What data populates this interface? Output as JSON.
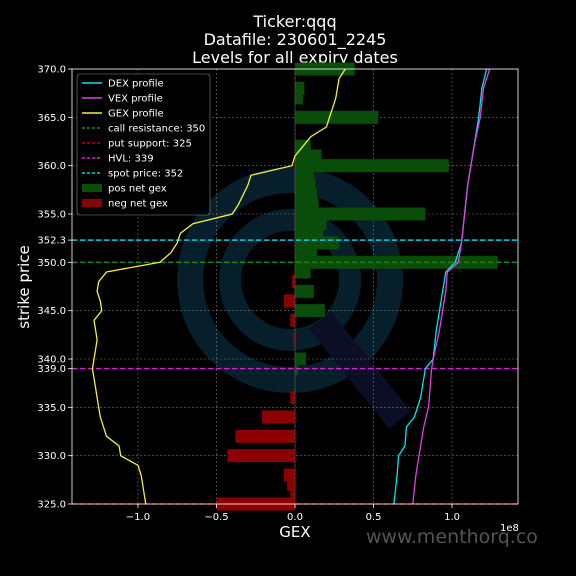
{
  "chart_data": {
    "type": "bar",
    "title_lines": [
      "Ticker:qqq",
      "Datafile: 230601_2245",
      "Levels for all expiry dates"
    ],
    "xlabel": "GEX",
    "ylabel": "strike price",
    "x_multiplier_label": "1e8",
    "xlim": [
      -1.42,
      1.42
    ],
    "ylim": [
      325,
      370
    ],
    "x_ticks": [
      -1.0,
      -0.5,
      0.0,
      0.5,
      1.0
    ],
    "x_tick_labels": [
      "−1.0",
      "−0.5",
      "0.0",
      "0.5",
      "1.0"
    ],
    "y_ticks": [
      325,
      330,
      335,
      339,
      340,
      345,
      350,
      352.3,
      355,
      360,
      365,
      370
    ],
    "y_tick_labels": [
      "325.0",
      "330.0",
      "335.0",
      "339.0",
      "340.0",
      "345.0",
      "350.0",
      "352.3",
      "355.0",
      "360.0",
      "365.0",
      "370.0"
    ],
    "grid": true,
    "legend_position": "top-left",
    "legend": [
      {
        "label": "DEX profile",
        "kind": "line",
        "color": "#00e5ee",
        "dash": false
      },
      {
        "label": "VEX profile",
        "kind": "line",
        "color": "#e040e0",
        "dash": false
      },
      {
        "label": "GEX profile",
        "kind": "line",
        "color": "#f0f040",
        "dash": false
      },
      {
        "label": "call resistance: 350",
        "kind": "line",
        "color": "#1a8a1a",
        "dash": true
      },
      {
        "label": "put support: 325",
        "kind": "line",
        "color": "#c00000",
        "dash": true
      },
      {
        "label": "HVL: 339",
        "kind": "line",
        "color": "#d020d0",
        "dash": true
      },
      {
        "label": "spot price: 352",
        "kind": "line",
        "color": "#00d0e0",
        "dash": true
      },
      {
        "label": "pos net gex",
        "kind": "patch",
        "color": "#0a4d0a"
      },
      {
        "label": "neg net gex",
        "kind": "patch",
        "color": "#8b0000"
      }
    ],
    "levels": [
      {
        "name": "call resistance",
        "y": 350,
        "color": "#1a8a1a"
      },
      {
        "name": "put support",
        "y": 325,
        "color": "#c00000"
      },
      {
        "name": "HVL",
        "y": 339,
        "color": "#d020d0"
      },
      {
        "name": "spot price",
        "y": 352.3,
        "color": "#00d0e0"
      }
    ],
    "pos_bars": [
      {
        "strike": 370,
        "value": 0.38
      },
      {
        "strike": 368,
        "value": 0.06
      },
      {
        "strike": 367,
        "value": 0.05
      },
      {
        "strike": 365,
        "value": 0.53
      },
      {
        "strike": 362,
        "value": 0.1
      },
      {
        "strike": 361,
        "value": 0.17
      },
      {
        "strike": 360,
        "value": 0.98
      },
      {
        "strike": 359,
        "value": 0.12
      },
      {
        "strike": 358,
        "value": 0.13
      },
      {
        "strike": 357,
        "value": 0.14
      },
      {
        "strike": 356,
        "value": 0.15
      },
      {
        "strike": 355,
        "value": 0.83
      },
      {
        "strike": 354,
        "value": 0.2
      },
      {
        "strike": 353,
        "value": 0.18
      },
      {
        "strike": 352,
        "value": 0.28
      },
      {
        "strike": 351,
        "value": 0.14
      },
      {
        "strike": 350,
        "value": 1.29
      },
      {
        "strike": 349,
        "value": 0.1
      },
      {
        "strike": 347,
        "value": 0.12
      },
      {
        "strike": 345,
        "value": 0.19
      },
      {
        "strike": 340,
        "value": 0.07
      },
      {
        "strike": 339,
        "value": 0.02
      }
    ],
    "neg_bars": [
      {
        "strike": 348,
        "value": -0.02
      },
      {
        "strike": 346,
        "value": -0.07
      },
      {
        "strike": 344,
        "value": -0.03
      },
      {
        "strike": 342,
        "value": -0.01
      },
      {
        "strike": 336,
        "value": -0.03
      },
      {
        "strike": 334,
        "value": -0.21
      },
      {
        "strike": 332,
        "value": -0.38
      },
      {
        "strike": 330,
        "value": -0.43
      },
      {
        "strike": 328,
        "value": -0.07
      },
      {
        "strike": 327,
        "value": -0.05
      },
      {
        "strike": 326,
        "value": -0.03
      },
      {
        "strike": 325,
        "value": -0.5
      }
    ],
    "series": [
      {
        "name": "GEX profile",
        "color": "#f0f040",
        "points": [
          [
            -0.95,
            325
          ],
          [
            -0.96,
            326
          ],
          [
            -0.97,
            327
          ],
          [
            -0.98,
            328
          ],
          [
            -1.0,
            329
          ],
          [
            -1.11,
            330
          ],
          [
            -1.12,
            331
          ],
          [
            -1.2,
            332
          ],
          [
            -1.22,
            333
          ],
          [
            -1.24,
            334
          ],
          [
            -1.25,
            335
          ],
          [
            -1.26,
            336
          ],
          [
            -1.27,
            337
          ],
          [
            -1.28,
            338
          ],
          [
            -1.29,
            339
          ],
          [
            -1.28,
            340
          ],
          [
            -1.27,
            341
          ],
          [
            -1.26,
            342
          ],
          [
            -1.27,
            343
          ],
          [
            -1.28,
            344
          ],
          [
            -1.23,
            345
          ],
          [
            -1.24,
            346
          ],
          [
            -1.26,
            347
          ],
          [
            -1.25,
            348
          ],
          [
            -1.2,
            349
          ],
          [
            -0.86,
            350
          ],
          [
            -0.79,
            351
          ],
          [
            -0.75,
            352
          ],
          [
            -0.73,
            353
          ],
          [
            -0.65,
            354
          ],
          [
            -0.4,
            355
          ],
          [
            -0.36,
            356
          ],
          [
            -0.33,
            357
          ],
          [
            -0.3,
            358
          ],
          [
            -0.28,
            359
          ],
          [
            -0.02,
            360
          ],
          [
            0.0,
            361
          ],
          [
            0.05,
            362
          ],
          [
            0.1,
            363
          ],
          [
            0.2,
            364
          ],
          [
            0.22,
            365
          ],
          [
            0.24,
            366
          ],
          [
            0.26,
            367
          ],
          [
            0.27,
            368
          ],
          [
            0.28,
            369
          ],
          [
            0.32,
            370
          ]
        ]
      },
      {
        "name": "DEX profile",
        "color": "#00e5ee",
        "points": [
          [
            0.63,
            325
          ],
          [
            0.65,
            328
          ],
          [
            0.66,
            330
          ],
          [
            0.7,
            331
          ],
          [
            0.71,
            333
          ],
          [
            0.76,
            334
          ],
          [
            0.8,
            336
          ],
          [
            0.82,
            338
          ],
          [
            0.83,
            339
          ],
          [
            0.88,
            340
          ],
          [
            0.9,
            343
          ],
          [
            0.92,
            345
          ],
          [
            0.94,
            347
          ],
          [
            0.96,
            349
          ],
          [
            1.02,
            350
          ],
          [
            1.06,
            352
          ],
          [
            1.08,
            355
          ],
          [
            1.1,
            358
          ],
          [
            1.12,
            360
          ],
          [
            1.14,
            362
          ],
          [
            1.17,
            365
          ],
          [
            1.19,
            368
          ],
          [
            1.22,
            370
          ]
        ]
      },
      {
        "name": "VEX profile",
        "color": "#e040e0",
        "points": [
          [
            0.75,
            325
          ],
          [
            0.77,
            328
          ],
          [
            0.8,
            331
          ],
          [
            0.82,
            333
          ],
          [
            0.85,
            335
          ],
          [
            0.86,
            337
          ],
          [
            0.87,
            339
          ],
          [
            0.88,
            340
          ],
          [
            0.92,
            343
          ],
          [
            0.94,
            345
          ],
          [
            0.96,
            347
          ],
          [
            0.97,
            349
          ],
          [
            1.04,
            350
          ],
          [
            1.06,
            352
          ],
          [
            1.08,
            355
          ],
          [
            1.1,
            358
          ],
          [
            1.12,
            360
          ],
          [
            1.14,
            362
          ],
          [
            1.18,
            365
          ],
          [
            1.2,
            368
          ],
          [
            1.24,
            370
          ]
        ]
      }
    ],
    "watermark": "www.menthorq.co"
  }
}
